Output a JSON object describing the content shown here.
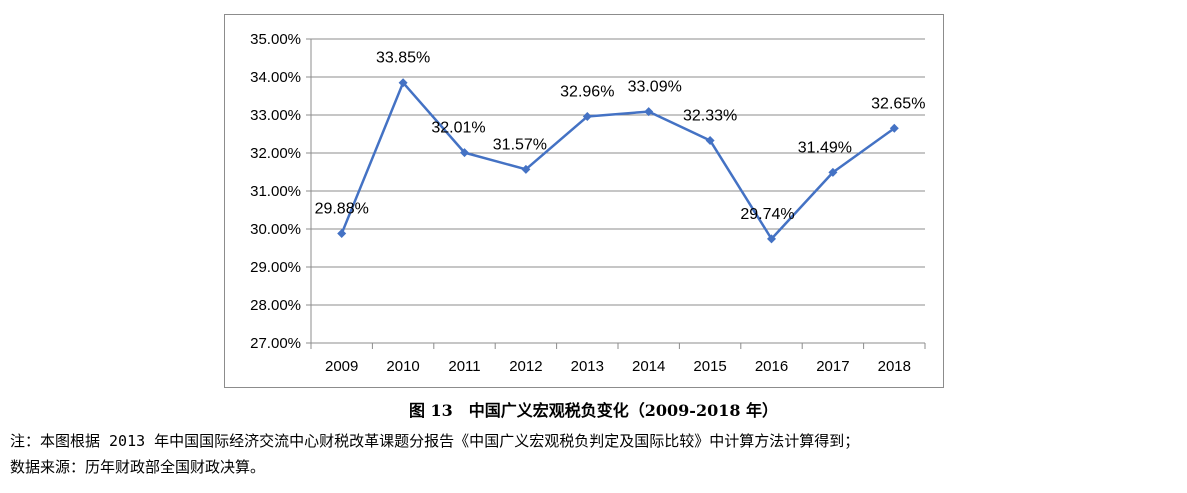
{
  "chart_data": {
    "type": "line",
    "categories": [
      "2009",
      "2010",
      "2011",
      "2012",
      "2013",
      "2014",
      "2015",
      "2016",
      "2017",
      "2018"
    ],
    "series": [
      {
        "values": [
          29.88,
          33.85,
          32.01,
          31.57,
          32.96,
          33.09,
          32.33,
          29.74,
          31.49,
          32.65
        ],
        "labels": [
          "29.88%",
          "33.85%",
          "32.01%",
          "31.57%",
          "32.96%",
          "33.09%",
          "32.33%",
          "29.74%",
          "31.49%",
          "32.65%"
        ]
      }
    ],
    "ylim": [
      27,
      35
    ],
    "yticks": [
      27,
      28,
      29,
      30,
      31,
      32,
      33,
      34,
      35
    ],
    "ytick_labels": [
      "27.00%",
      "28.00%",
      "29.00%",
      "30.00%",
      "31.00%",
      "32.00%",
      "33.00%",
      "34.00%",
      "35.00%"
    ],
    "grid": true,
    "line_color": "#4472c4",
    "grid_color": "#8c8c8c"
  },
  "caption": "图 13　中国广义宏观税负变化（2009-2018 年）",
  "notes": {
    "line1": "注：本图根据 2013 年中国国际经济交流中心财税改革课题分报告《中国广义宏观税负判定及国际比较》中计算方法计算得到；",
    "line2": "数据来源：历年财政部全国财政决算。"
  }
}
